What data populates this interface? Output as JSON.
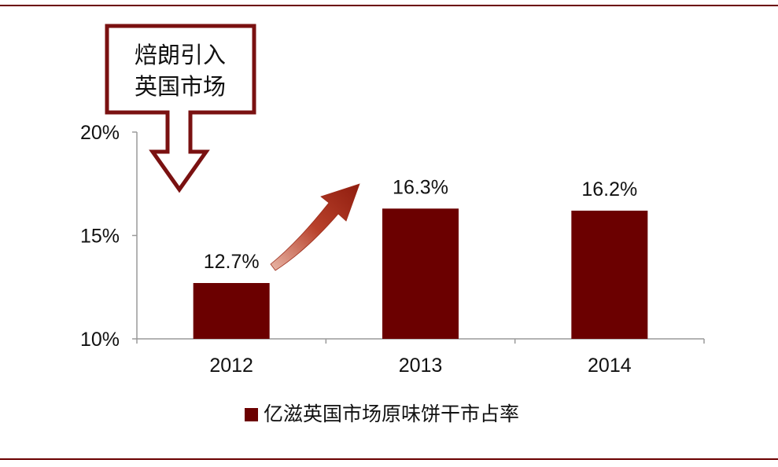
{
  "chart_data": {
    "type": "bar",
    "categories": [
      "2012",
      "2013",
      "2014"
    ],
    "series": [
      {
        "name": "亿滋英国市场原味饼干市占率",
        "values": [
          12.7,
          16.3,
          16.2
        ],
        "color": "#6b0000"
      }
    ],
    "value_labels": [
      "12.7%",
      "16.3%",
      "16.2%"
    ],
    "ylim": [
      10,
      20
    ],
    "yticks": [
      10,
      15,
      20
    ],
    "ytick_labels": [
      "10%",
      "15%",
      "20%"
    ],
    "xlabel": "",
    "ylabel": "",
    "grid": false,
    "legend_placement": "bottom",
    "annotation": {
      "line1": "焙朗引入",
      "line2": "英国市场"
    },
    "trend_arrow": "up"
  },
  "colors": {
    "bar": "#6b0000",
    "rule": "#6b0000",
    "axis": "#9a9a9a",
    "arrow_outline": "#7a1111",
    "trend_arrow": "#a8321f"
  }
}
